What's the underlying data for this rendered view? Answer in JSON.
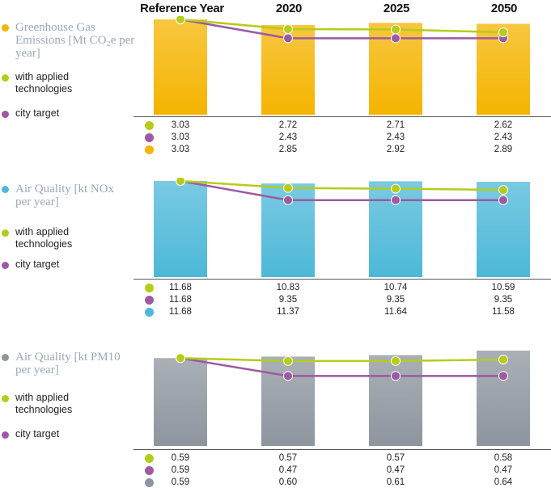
{
  "header": {
    "columns": [
      "Reference Year",
      "2020",
      "2025",
      "2050"
    ]
  },
  "colors": {
    "technologies": "#b5cc1a",
    "city_target": "#9b5aa3",
    "ghg": "#f5b400",
    "nox": "#4db8d8",
    "pm10": "#8e959e"
  },
  "legend": {
    "technologies_label": "with applied technologies",
    "city_target_label": "city target"
  },
  "chart_data": [
    {
      "type": "bar",
      "title": "Greenhouse Gas Emissions [Mt CO₂e per year]",
      "categories": [
        "Reference Year",
        "2020",
        "2025",
        "2050"
      ],
      "ylim": [
        0,
        3.03
      ],
      "series": [
        {
          "name": "with applied technologies",
          "kind": "line",
          "values": [
            3.03,
            2.72,
            2.71,
            2.62
          ],
          "labels": [
            "3.03",
            "2.72",
            "2.71",
            "2.62"
          ]
        },
        {
          "name": "city target",
          "kind": "line",
          "values": [
            3.03,
            2.43,
            2.43,
            2.43
          ],
          "labels": [
            "3.03",
            "2.43",
            "2.43",
            "2.43"
          ]
        },
        {
          "name": "",
          "kind": "bar",
          "values": [
            3.03,
            2.85,
            2.92,
            2.89
          ],
          "labels": [
            "3.03",
            "2.85",
            "2.92",
            "2.89"
          ]
        }
      ]
    },
    {
      "type": "bar",
      "title": "Air Quality [kt NOx per year]",
      "categories": [
        "Reference Year",
        "2020",
        "2025",
        "2050"
      ],
      "ylim": [
        0,
        11.68
      ],
      "series": [
        {
          "name": "with applied technologies",
          "kind": "line",
          "values": [
            11.68,
            10.83,
            10.74,
            10.59
          ],
          "labels": [
            "11.68",
            "10.83",
            "10.74",
            "10.59"
          ]
        },
        {
          "name": "city target",
          "kind": "line",
          "values": [
            11.68,
            9.35,
            9.35,
            9.35
          ],
          "labels": [
            "11.68",
            "9.35",
            "9.35",
            "9.35"
          ]
        },
        {
          "name": "",
          "kind": "bar",
          "values": [
            11.68,
            11.37,
            11.64,
            11.58
          ],
          "labels": [
            "11.68",
            "11.37",
            "11.64",
            "11.58"
          ]
        }
      ]
    },
    {
      "type": "bar",
      "title": "Air Quality [kt PM10 per year]",
      "categories": [
        "Reference Year",
        "2020",
        "2025",
        "2050"
      ],
      "ylim": [
        0,
        0.64
      ],
      "series": [
        {
          "name": "with applied technologies",
          "kind": "line",
          "values": [
            0.59,
            0.57,
            0.57,
            0.58
          ],
          "labels": [
            "0.59",
            "0.57",
            "0.57",
            "0.58"
          ]
        },
        {
          "name": "city target",
          "kind": "line",
          "values": [
            0.59,
            0.47,
            0.47,
            0.47
          ],
          "labels": [
            "0.59",
            "0.47",
            "0.47",
            "0.47"
          ]
        },
        {
          "name": "",
          "kind": "bar",
          "values": [
            0.59,
            0.6,
            0.61,
            0.64
          ],
          "labels": [
            "0.59",
            "0.60",
            "0.61",
            "0.64"
          ]
        }
      ]
    }
  ]
}
